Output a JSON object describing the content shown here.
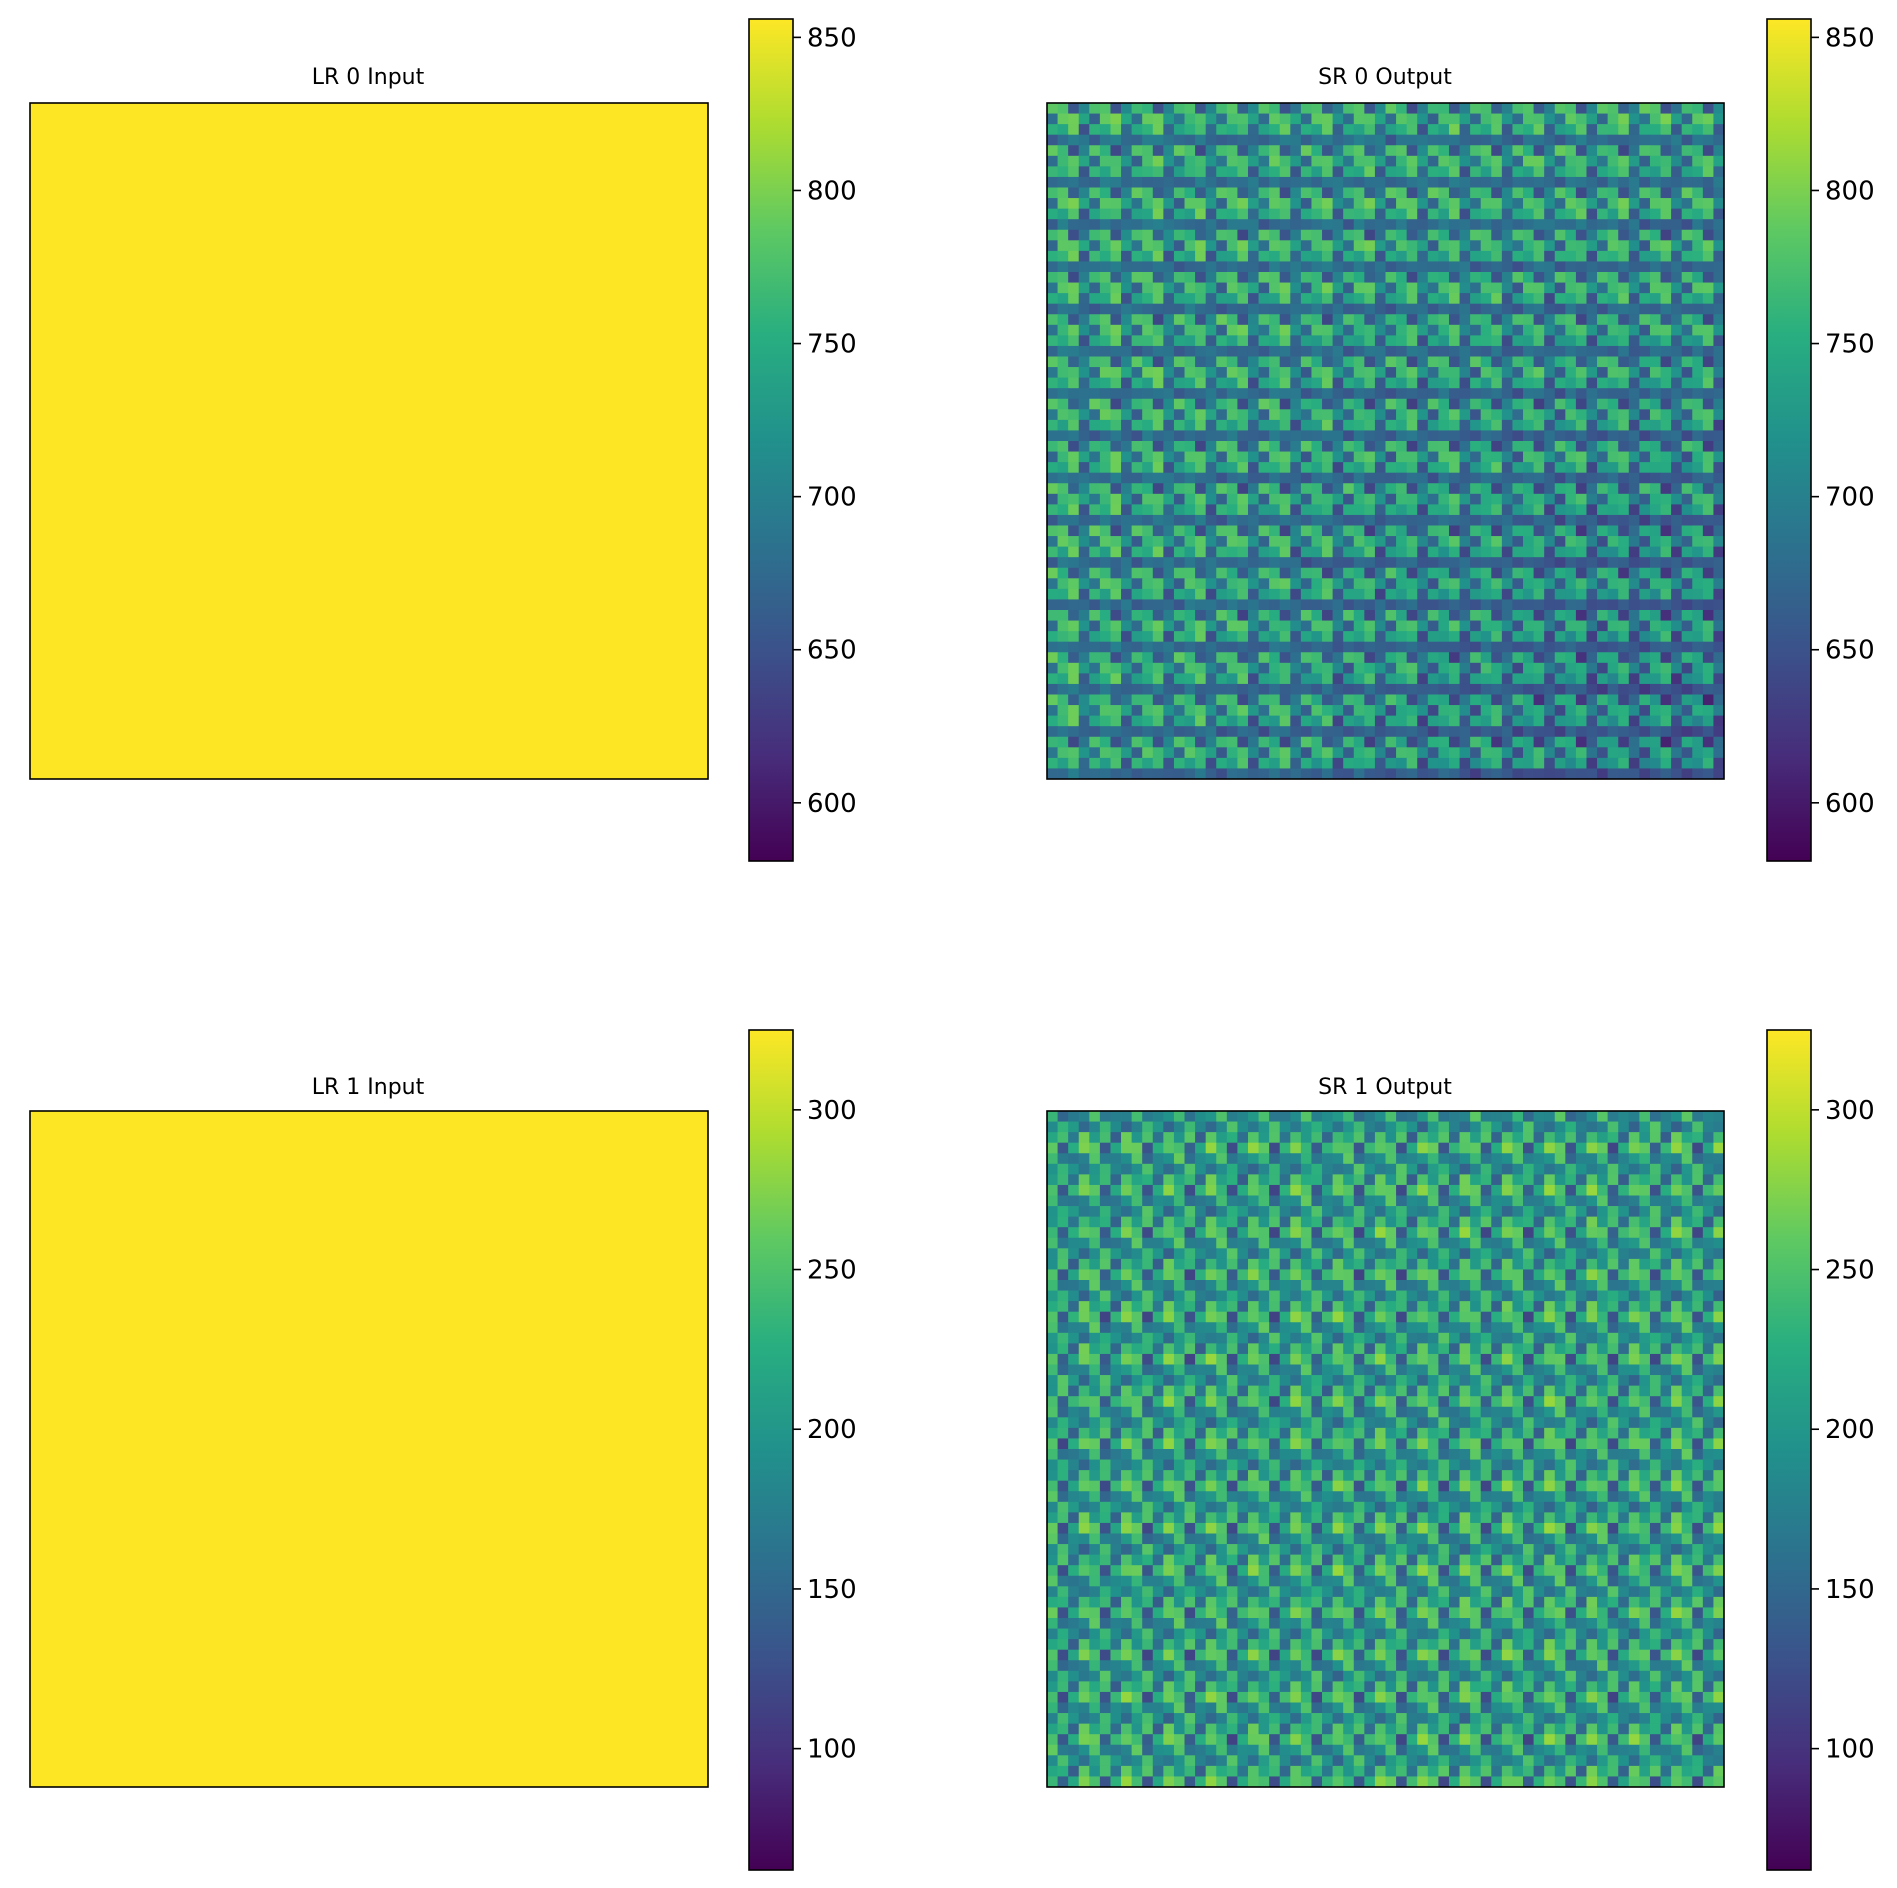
{
  "chart_data": [
    {
      "type": "heatmap",
      "title": "LR 0 Input",
      "grid": false,
      "colormap": "viridis",
      "rows": 1,
      "cols": 1,
      "values": [
        [
          856
        ]
      ],
      "colorbar": {
        "range": [
          581,
          856
        ],
        "ticks": [
          600,
          650,
          700,
          750,
          800,
          850
        ]
      }
    },
    {
      "type": "heatmap",
      "title": "SR 0 Output",
      "grid": false,
      "colormap": "viridis",
      "rows": 64,
      "cols": 64,
      "pattern": "periodic",
      "period": 4,
      "value_range": [
        585,
        856
      ],
      "colorbar": {
        "range": [
          581,
          856
        ],
        "ticks": [
          600,
          650,
          700,
          750,
          800,
          850
        ]
      }
    },
    {
      "type": "heatmap",
      "title": "LR 1 Input",
      "grid": false,
      "colormap": "viridis",
      "rows": 1,
      "cols": 1,
      "values": [
        [
          325
        ]
      ],
      "colorbar": {
        "range": [
          62,
          325
        ],
        "ticks": [
          100,
          150,
          200,
          250,
          300
        ]
      }
    },
    {
      "type": "heatmap",
      "title": "SR 1 Output",
      "grid": false,
      "colormap": "viridis",
      "rows": 64,
      "cols": 64,
      "pattern": "periodic",
      "period": 4,
      "value_range": [
        62,
        325
      ],
      "colorbar": {
        "range": [
          62,
          325
        ],
        "ticks": [
          100,
          150,
          200,
          250,
          300
        ]
      }
    }
  ]
}
